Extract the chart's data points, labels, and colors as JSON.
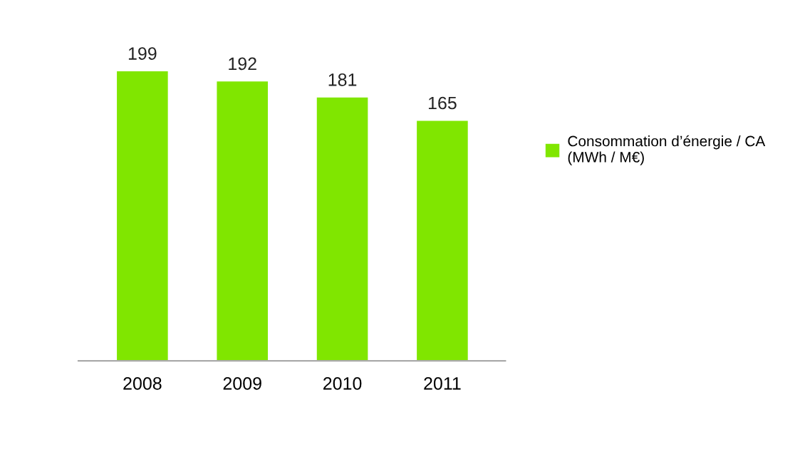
{
  "chart_data": {
    "type": "bar",
    "categories": [
      "2008",
      "2009",
      "2010",
      "2011"
    ],
    "series": [
      {
        "name": "Consommation d’énergie / CA\n(MWh / M€)",
        "color": "#80e600",
        "values": [
          199,
          192,
          181,
          165
        ]
      }
    ],
    "data_labels": true,
    "tick_labels": "x",
    "grid": false,
    "legend": "right"
  }
}
